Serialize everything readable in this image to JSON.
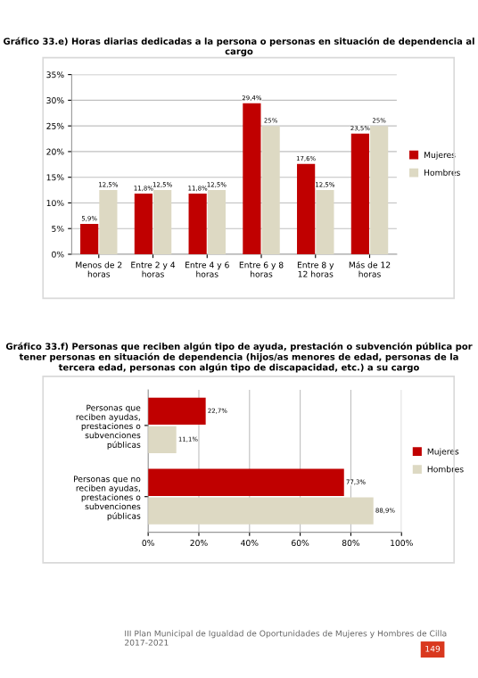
{
  "chart_data": [
    {
      "type": "bar",
      "title": "Gráfico 33.e) Horas diarias dedicadas a la persona o personas en situación de dependencia al cargo",
      "categories": [
        "Menos de 2 horas",
        "Entre 2 y 4 horas",
        "Entre 4 y 6 horas",
        "Entre 6 y 8 horas",
        "Entre 8 y 12 horas",
        "Más de 12 horas"
      ],
      "series": [
        {
          "name": "Mujeres",
          "color": "#c00000",
          "values": [
            5.9,
            11.8,
            11.8,
            29.4,
            17.6,
            23.5
          ],
          "value_labels": [
            "5,9%",
            "11,8%",
            "11,8%",
            "29,4%",
            "17,6%",
            "23,5%"
          ]
        },
        {
          "name": "Hombres",
          "color": "#ddd9c3",
          "values": [
            12.5,
            12.5,
            12.5,
            25,
            12.5,
            25
          ],
          "value_labels": [
            "12,5%",
            "12,5%",
            "12,5%",
            "25%",
            "12,5%",
            "25%"
          ]
        }
      ],
      "ylim": [
        0,
        35
      ],
      "yticks": [
        {
          "value": 0,
          "label": "0%"
        },
        {
          "value": 5,
          "label": "5%"
        },
        {
          "value": 10,
          "label": "10%"
        },
        {
          "value": 15,
          "label": "15%"
        },
        {
          "value": 20,
          "label": "20%"
        },
        {
          "value": 25,
          "label": "25%"
        },
        {
          "value": 30,
          "label": "30%"
        },
        {
          "value": 35,
          "label": "35%"
        }
      ],
      "grid": "y",
      "legend": "right"
    },
    {
      "type": "bar",
      "orientation": "horizontal",
      "title": "Gráfico 33.f) Personas que reciben algún tipo de ayuda, prestación o subvención pública por tener personas en situación de dependencia (hijos/as menores de edad, personas de la tercera edad, personas con algún tipo de discapacidad, etc.) a su cargo",
      "categories": [
        "Personas que reciben ayudas, prestaciones o subvenciones públicas",
        "Personas que no reciben ayudas, prestaciones o subvenciones públicas"
      ],
      "series": [
        {
          "name": "Mujeres",
          "color": "#c00000",
          "values": [
            22.7,
            77.3
          ],
          "value_labels": [
            "22,7%",
            "77,3%"
          ]
        },
        {
          "name": "Hombres",
          "color": "#ddd9c3",
          "values": [
            11.1,
            88.9
          ],
          "value_labels": [
            "11,1%",
            "88,9%"
          ]
        }
      ],
      "xlim": [
        0,
        100
      ],
      "xticks": [
        {
          "value": 0,
          "label": "0%"
        },
        {
          "value": 20,
          "label": "20%"
        },
        {
          "value": 40,
          "label": "40%"
        },
        {
          "value": 60,
          "label": "60%"
        },
        {
          "value": 80,
          "label": "80%"
        },
        {
          "value": 100,
          "label": "100%"
        }
      ],
      "grid": "x",
      "legend": "right",
      "annotations": [
        "III Plan Municipal de Igualdad de Oportunidades de Mujeres y Hombres de Cilla 2017-2021",
        "149"
      ]
    }
  ]
}
